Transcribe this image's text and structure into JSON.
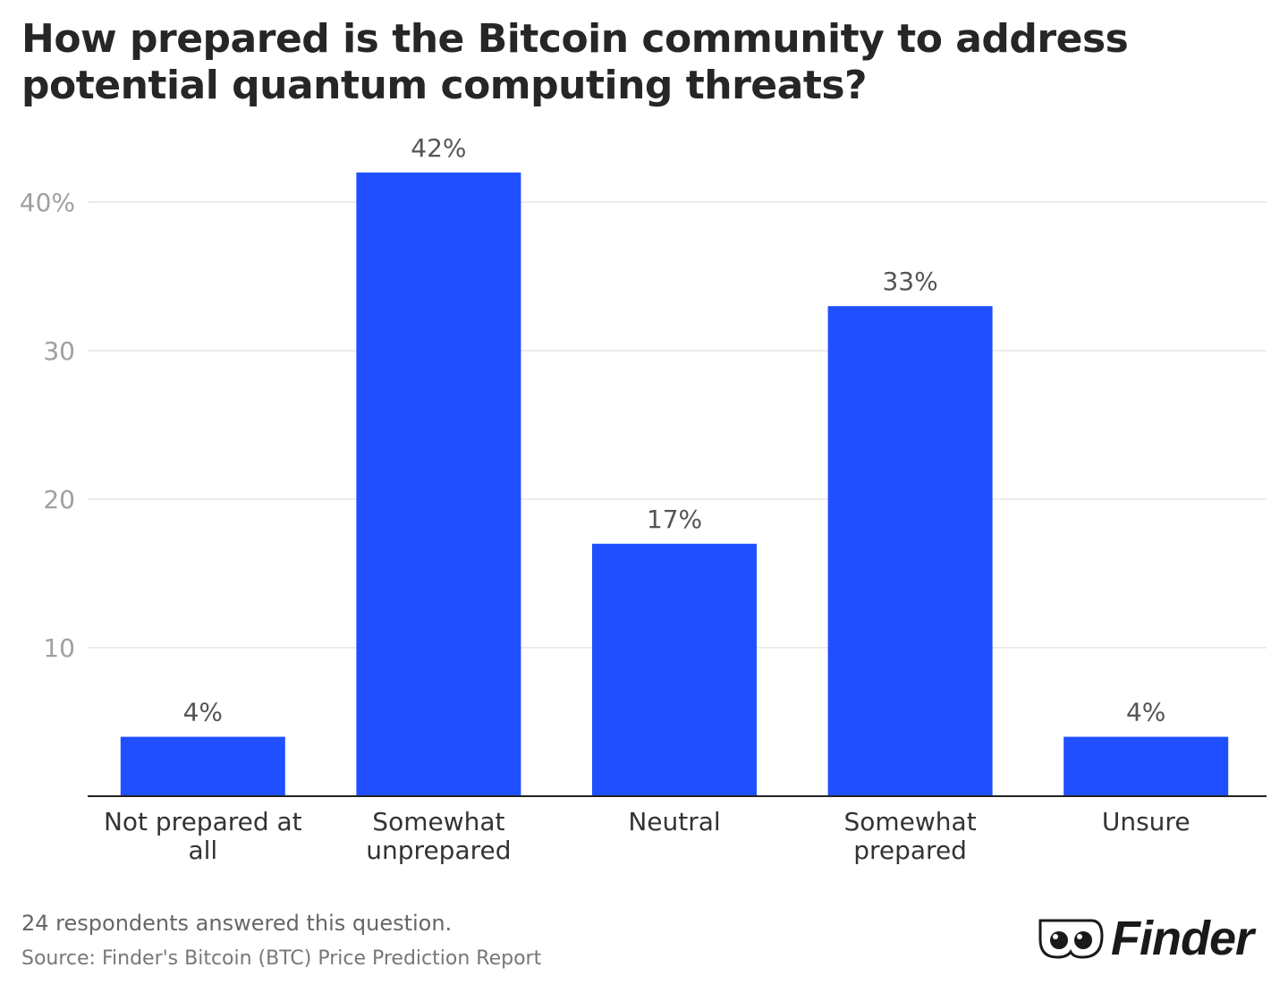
{
  "title": "How prepared is the Bitcoin community to address potential quantum computing threats?",
  "footnote": "24 respondents answered this question.",
  "source": "Source: Finder's Bitcoin (BTC) Price Prediction Report",
  "brand": "Finder",
  "colors": {
    "bar": "#1f4fff",
    "grid": "#e6e6e6",
    "axis": "#222222"
  },
  "chart_data": {
    "type": "bar",
    "title": "How prepared is the Bitcoin community to address potential quantum computing threats?",
    "categories": [
      [
        "Not prepared at",
        "all"
      ],
      [
        "Somewhat",
        "unprepared"
      ],
      [
        "Neutral"
      ],
      [
        "Somewhat",
        "prepared"
      ],
      [
        "Unsure"
      ]
    ],
    "values": [
      4,
      42,
      17,
      33,
      4
    ],
    "data_labels": [
      "4%",
      "42%",
      "17%",
      "33%",
      "4%"
    ],
    "yticks": [
      10,
      20,
      30,
      40
    ],
    "ytick_labels": [
      "10",
      "20",
      "30",
      "40%"
    ],
    "ylim": [
      0,
      42
    ],
    "grid": true,
    "xlabel": "",
    "ylabel": ""
  }
}
